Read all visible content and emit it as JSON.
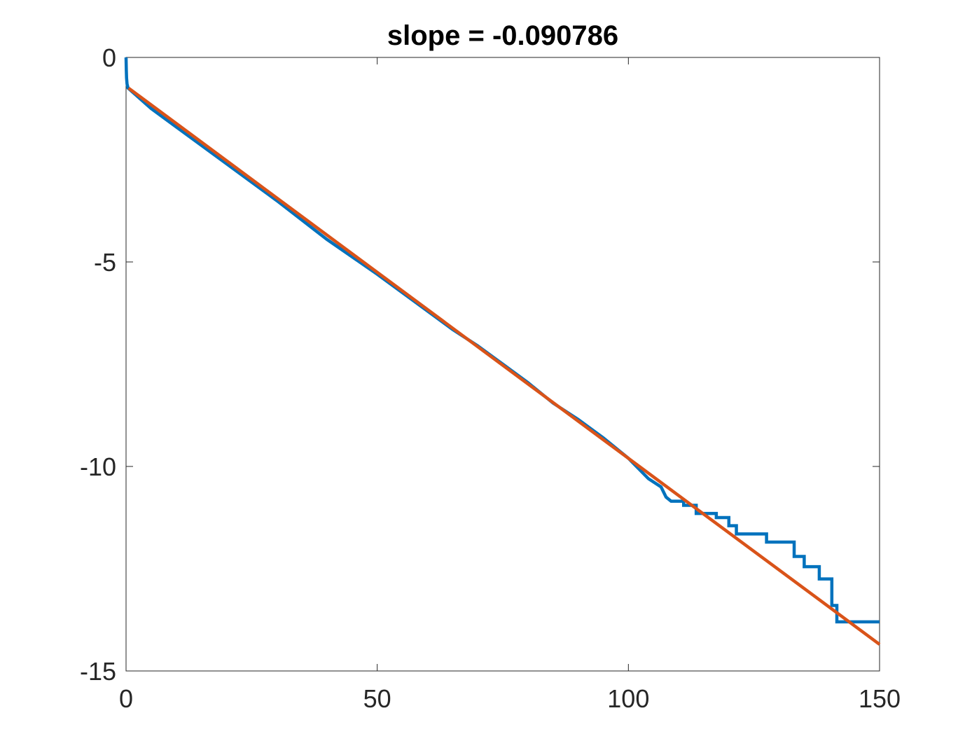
{
  "chart_data": {
    "type": "line",
    "title": "slope = -0.090786",
    "xlabel": "",
    "ylabel": "",
    "xlim": [
      0,
      150
    ],
    "ylim": [
      -15,
      0
    ],
    "xticks": [
      0,
      50,
      100,
      150
    ],
    "yticks": [
      0,
      -5,
      -10,
      -15
    ],
    "xtick_labels": [
      "0",
      "50",
      "100",
      "150"
    ],
    "ytick_labels": [
      "0",
      "-5",
      "-10",
      "-15"
    ],
    "grid": false,
    "box": true,
    "series": [
      {
        "color": "#0072BD",
        "style": "staircase",
        "points": [
          [
            0,
            0
          ],
          [
            0.05,
            -0.3
          ],
          [
            0.1,
            -0.5
          ],
          [
            0.2,
            -0.65
          ],
          [
            0.4,
            -0.75
          ],
          [
            5,
            -1.25
          ],
          [
            10,
            -1.7
          ],
          [
            20,
            -2.6
          ],
          [
            30,
            -3.5
          ],
          [
            40,
            -4.45
          ],
          [
            50,
            -5.3
          ],
          [
            60,
            -6.2
          ],
          [
            65,
            -6.65
          ],
          [
            70,
            -7.05
          ],
          [
            75,
            -7.5
          ],
          [
            80,
            -7.95
          ],
          [
            85,
            -8.45
          ],
          [
            90,
            -8.85
          ],
          [
            95,
            -9.3
          ],
          [
            100,
            -9.8
          ],
          [
            104,
            -10.3
          ],
          [
            106.5,
            -10.5
          ],
          [
            107.5,
            -10.75
          ],
          [
            108.5,
            -10.85
          ],
          [
            111,
            -10.85
          ],
          [
            111,
            -10.95
          ],
          [
            113.5,
            -10.95
          ],
          [
            113.5,
            -11.15
          ],
          [
            117.5,
            -11.15
          ],
          [
            117.5,
            -11.25
          ],
          [
            120,
            -11.25
          ],
          [
            120,
            -11.45
          ],
          [
            121.5,
            -11.45
          ],
          [
            121.5,
            -11.65
          ],
          [
            127.5,
            -11.65
          ],
          [
            127.5,
            -11.85
          ],
          [
            133,
            -11.85
          ],
          [
            133,
            -12.2
          ],
          [
            135,
            -12.2
          ],
          [
            135,
            -12.45
          ],
          [
            138,
            -12.45
          ],
          [
            138,
            -12.75
          ],
          [
            140.5,
            -12.75
          ],
          [
            140.5,
            -13.4
          ],
          [
            141.5,
            -13.4
          ],
          [
            141.5,
            -13.8
          ],
          [
            150,
            -13.8
          ]
        ]
      },
      {
        "color": "#D95319",
        "style": "line",
        "x": [
          0.5,
          150
        ],
        "y": [
          -0.75,
          -14.35
        ]
      }
    ]
  }
}
